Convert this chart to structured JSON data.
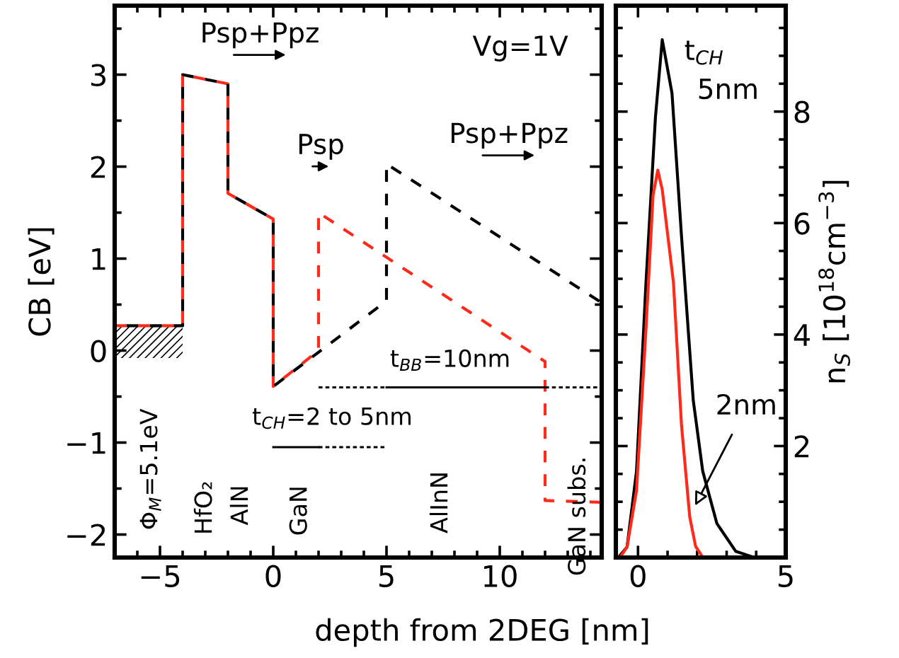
{
  "chart_data": [
    {
      "type": "line",
      "xlabel": "depth from 2DEG [nm]",
      "ylabel": "CB [eV]",
      "line_style": "dashed",
      "xlim": [
        -7,
        14.5
      ],
      "ylim": [
        -2.25,
        3.75
      ],
      "xticks": [
        -5,
        0,
        5,
        10,
        {
          "value": -6,
          "label": null
        },
        {
          "value": -4,
          "label": null
        },
        {
          "value": -3,
          "label": null
        },
        {
          "value": -2,
          "label": null
        },
        {
          "value": -1,
          "label": null
        },
        {
          "value": 1,
          "label": null
        },
        {
          "value": 2,
          "label": null
        },
        {
          "value": 3,
          "label": null
        },
        {
          "value": 4,
          "label": null
        },
        {
          "value": 6,
          "label": null
        },
        {
          "value": 7,
          "label": null
        },
        {
          "value": 8,
          "label": null
        },
        {
          "value": 9,
          "label": null
        },
        {
          "value": 11,
          "label": null
        },
        {
          "value": 12,
          "label": null
        },
        {
          "value": 13,
          "label": null
        },
        {
          "value": 14,
          "label": null
        }
      ],
      "yticks": [
        -2,
        -1,
        0,
        1,
        2,
        3,
        {
          "value": -1.5,
          "label": null
        },
        {
          "value": -0.5,
          "label": null
        },
        {
          "value": 0.5,
          "label": null
        },
        {
          "value": 1.5,
          "label": null
        },
        {
          "value": 2.5,
          "label": null
        },
        {
          "value": 3.5,
          "label": null
        }
      ],
      "series": [
        {
          "color": "#ff2a1a",
          "x": [
            -7,
            -4,
            -4,
            -2,
            -2,
            0,
            0,
            2,
            2,
            12,
            12,
            14.5
          ],
          "values": [
            0.27,
            0.27,
            3.0,
            2.9,
            1.71,
            1.43,
            -0.39,
            0.0,
            1.5,
            -0.12,
            -1.63,
            -1.65
          ]
        },
        {
          "color": "#000000",
          "x": [
            -7,
            -4,
            -4,
            -2,
            -2,
            0,
            0,
            5,
            5,
            14.5
          ],
          "values": [
            0.27,
            0.27,
            3.0,
            2.9,
            1.71,
            1.43,
            -0.39,
            0.54,
            2.03,
            0.52
          ]
        },
        {
          "color": "#000000",
          "line_style": "dotted",
          "x": [
            2,
            5
          ],
          "values": [
            -0.4,
            -0.4
          ]
        },
        {
          "color": "#000000",
          "line_style": "solid",
          "x": [
            5,
            12
          ],
          "values": [
            -0.4,
            -0.4
          ]
        },
        {
          "color": "#000000",
          "line_style": "dotted",
          "x": [
            12,
            14.5
          ],
          "values": [
            -0.4,
            -0.4
          ]
        },
        {
          "color": "#000000",
          "line_style": "solid",
          "x": [
            0,
            2
          ],
          "values": [
            -1.05,
            -1.05
          ]
        },
        {
          "color": "#000000",
          "line_style": "dotted",
          "x": [
            2,
            5
          ],
          "values": [
            -1.05,
            -1.05
          ]
        }
      ],
      "bands": [
        {
          "axis": "y",
          "from": -0.08,
          "to": 0.27,
          "color": "#000000"
        }
      ],
      "annotations": [
        "Vg=1V",
        "Psp+Ppz",
        "Psp",
        "Psp+Ppz",
        "t$_{BB}$=10nm",
        "t$_{CH}$=2 to 5nm",
        "Φ$_{M}$=5.1eV",
        "HfO₂",
        "AlN",
        "GaN",
        "AlInN",
        "GaN subs."
      ]
    },
    {
      "type": "line",
      "ylabel": "n$_{S}$ [10$^{18}$cm$^{−3}$]",
      "line_style": "solid",
      "xlim": [
        -0.75,
        5
      ],
      "ylim": [
        0,
        9.9
      ],
      "xticks": [
        0,
        5,
        {
          "value": 1,
          "label": null
        },
        {
          "value": 2,
          "label": null
        },
        {
          "value": 3,
          "label": null
        },
        {
          "value": 4,
          "label": null
        }
      ],
      "yticks": [
        2,
        4,
        6,
        8,
        {
          "value": 0.5,
          "label": null
        },
        {
          "value": 1,
          "label": null
        },
        {
          "value": 1.5,
          "label": null
        },
        {
          "value": 2.5,
          "label": null
        },
        {
          "value": 3,
          "label": null
        },
        {
          "value": 3.5,
          "label": null
        },
        {
          "value": 4.5,
          "label": null
        },
        {
          "value": 5,
          "label": null
        },
        {
          "value": 5.5,
          "label": null
        },
        {
          "value": 6.5,
          "label": null
        },
        {
          "value": 7,
          "label": null
        },
        {
          "value": 7.5,
          "label": null
        },
        {
          "value": 8.5,
          "label": null
        },
        {
          "value": 9,
          "label": null
        },
        {
          "value": 9.5,
          "label": null
        }
      ],
      "series": [
        {
          "color": "#000000",
          "x": [
            -0.67,
            -0.37,
            -0.05,
            0.27,
            0.59,
            0.82,
            1.15,
            1.47,
            1.87,
            2.19,
            2.67,
            3.31,
            3.94
          ],
          "values": [
            0,
            0.19,
            1.55,
            4.93,
            7.9,
            9.29,
            8.33,
            5.78,
            2.82,
            1.55,
            0.61,
            0.11,
            0
          ]
        },
        {
          "color": "#ff2a1a",
          "x": [
            -0.61,
            -0.37,
            -0.05,
            0.27,
            0.51,
            0.67,
            0.82,
            1.2,
            1.47,
            1.75,
            1.95,
            2.2
          ],
          "values": [
            0,
            0.19,
            1.2,
            4.1,
            6.5,
            6.95,
            6.6,
            4.93,
            2.39,
            0.73,
            0.2,
            0
          ]
        }
      ],
      "annotations": [
        "t$_{CH}$",
        "5nm",
        {
          "text": "2nm",
          "x": 1.87,
          "y": 0.87
        }
      ]
    }
  ]
}
